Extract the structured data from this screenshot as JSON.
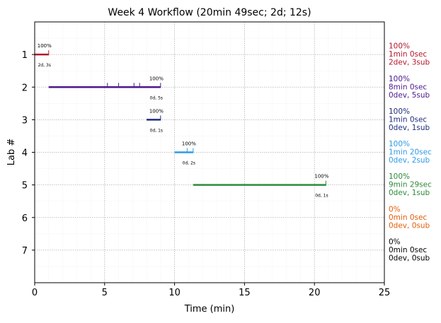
{
  "chart_data": {
    "type": "line",
    "title": "Week 4 Workflow (20min 49sec; 2d; 12s)",
    "xlabel": "Time (min)",
    "ylabel": "Lab #",
    "xlim": [
      0,
      25
    ],
    "ylim": [
      8,
      0
    ],
    "xticks": [
      "0",
      "5",
      "10",
      "15",
      "20",
      "25"
    ],
    "yticks": [
      "1",
      "2",
      "3",
      "4",
      "5",
      "6",
      "7"
    ],
    "grid": true,
    "series": [
      {
        "lab": 1,
        "color": "#b2182b",
        "start": 0.0,
        "end": 1.0,
        "submissions": [
          1.0
        ],
        "bar_pct": "100%",
        "bar_info": "2d, 3s",
        "right_labels": [
          "100%",
          "1min 0sec",
          "2dev, 3sub"
        ]
      },
      {
        "lab": 2,
        "color": "#4b1a8c",
        "start": 1.0,
        "end": 9.0,
        "submissions": [
          5.2,
          6.0,
          7.1,
          7.5,
          9.0
        ],
        "bar_pct": "100%",
        "bar_info": "0d, 5s",
        "right_labels": [
          "100%",
          "8min 0sec",
          "0dev, 5sub"
        ]
      },
      {
        "lab": 3,
        "color": "#1f2d7a",
        "start": 8.0,
        "end": 9.0,
        "submissions": [
          9.0
        ],
        "bar_pct": "100%",
        "bar_info": "0d, 1s",
        "right_labels": [
          "100%",
          "1min 0sec",
          "0dev, 1sub"
        ]
      },
      {
        "lab": 4,
        "color": "#2f9be6",
        "start": 10.0,
        "end": 11.33,
        "submissions": [
          10.9,
          11.33
        ],
        "bar_pct": "100%",
        "bar_info": "0d, 2s",
        "right_labels": [
          "100%",
          "1min 20sec",
          "0dev, 2sub"
        ]
      },
      {
        "lab": 5,
        "color": "#2e8b3a",
        "start": 11.33,
        "end": 20.82,
        "submissions": [
          20.82
        ],
        "bar_pct": "100%",
        "bar_info": "0d, 1s",
        "right_labels": [
          "100%",
          "9min 29sec",
          "0dev, 1sub"
        ]
      },
      {
        "lab": 6,
        "color": "#e35d0a",
        "start": null,
        "end": null,
        "submissions": [],
        "bar_pct": "",
        "bar_info": "",
        "right_labels": [
          "0%",
          "0min 0sec",
          "0dev, 0sub"
        ]
      },
      {
        "lab": 7,
        "color": "#000000",
        "start": null,
        "end": null,
        "submissions": [],
        "bar_pct": "",
        "bar_info": "",
        "right_labels": [
          "0%",
          "0min 0sec",
          "0dev, 0sub"
        ]
      }
    ]
  }
}
